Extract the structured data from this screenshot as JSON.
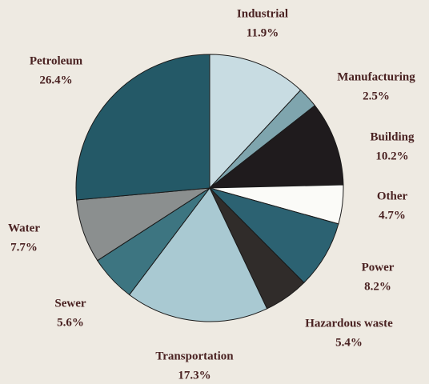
{
  "chart_data": {
    "type": "pie",
    "categories": [
      "Industrial",
      "Manufacturing",
      "Building",
      "Other",
      "Power",
      "Hazardous waste",
      "Transportation",
      "Sewer",
      "Water",
      "Petroleum"
    ],
    "values": [
      11.9,
      2.5,
      10.2,
      4.7,
      8.2,
      5.4,
      17.3,
      5.6,
      7.7,
      26.4
    ],
    "value_labels": [
      "11.9%",
      "2.5%",
      "10.2%",
      "4.7%",
      "8.2%",
      "5.4%",
      "17.3%",
      "5.6%",
      "7.7%",
      "26.4%"
    ],
    "colors": [
      "#c8dce2",
      "#7fa5ae",
      "#1f1b1d",
      "#fbfbf8",
      "#2c6272",
      "#302c2a",
      "#a9c9d2",
      "#3d7581",
      "#8b8f8f",
      "#245967"
    ]
  }
}
